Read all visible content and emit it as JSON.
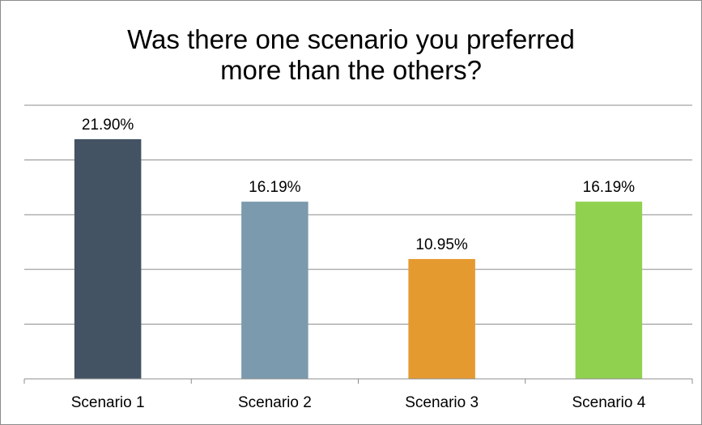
{
  "chart_data": {
    "type": "bar",
    "title": "Was there one scenario you preferred more than the others?",
    "title_lines": [
      "Was there one scenario you preferred",
      "more than the others?"
    ],
    "categories": [
      "Scenario 1",
      "Scenario 2",
      "Scenario 3",
      "Scenario 4"
    ],
    "values": [
      21.9,
      16.19,
      10.95,
      16.19
    ],
    "value_labels": [
      "21.90%",
      "16.19%",
      "10.95%",
      "16.19%"
    ],
    "colors": [
      "#435363",
      "#7b9aae",
      "#e59a30",
      "#91d150"
    ],
    "gridline_color": "#8c8c8c",
    "ylim": [
      0,
      25
    ],
    "grid": true,
    "legend": "none"
  }
}
